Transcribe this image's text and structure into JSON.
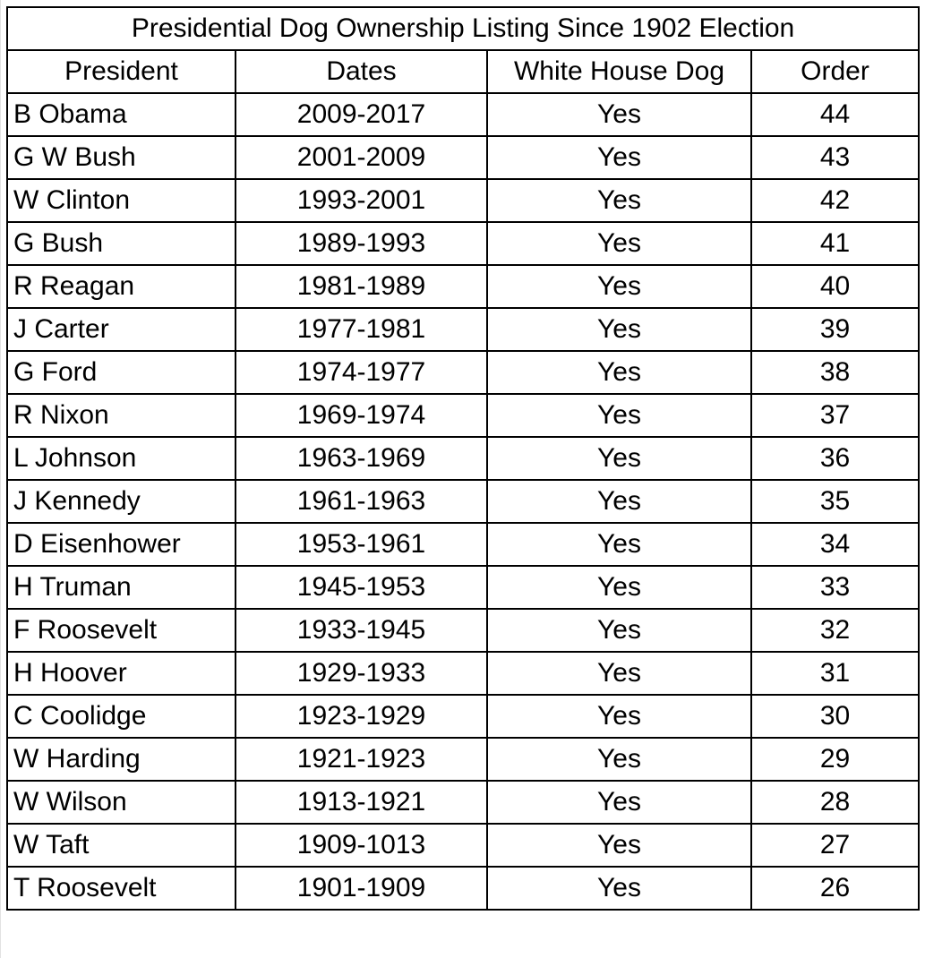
{
  "table": {
    "title": "Presidential Dog Ownership Listing  Since 1902 Election",
    "header": [
      "President",
      "Dates",
      "White House Dog",
      "Order"
    ],
    "rows": [
      [
        "B Obama",
        "2009-2017",
        "Yes",
        44
      ],
      [
        "G W Bush",
        "2001-2009",
        "Yes",
        43
      ],
      [
        "W Clinton",
        "1993-2001",
        "Yes",
        42
      ],
      [
        "G Bush",
        "1989-1993",
        "Yes",
        41
      ],
      [
        "R Reagan",
        "1981-1989",
        "Yes",
        40
      ],
      [
        "J Carter",
        "1977-1981",
        "Yes",
        39
      ],
      [
        "G Ford",
        "1974-1977",
        "Yes",
        38
      ],
      [
        "R Nixon",
        "1969-1974",
        "Yes",
        37
      ],
      [
        "L Johnson",
        "1963-1969",
        "Yes",
        36
      ],
      [
        "J Kennedy",
        "1961-1963",
        "Yes",
        35
      ],
      [
        "D Eisenhower",
        "1953-1961",
        "Yes",
        34
      ],
      [
        "H Truman",
        "1945-1953",
        "Yes",
        33
      ],
      [
        "F Roosevelt",
        "1933-1945",
        "Yes",
        32
      ],
      [
        "H Hoover",
        "1929-1933",
        "Yes",
        31
      ],
      [
        "C Coolidge",
        "1923-1929",
        "Yes",
        30
      ],
      [
        "W Harding",
        "1921-1923",
        "Yes",
        29
      ],
      [
        "W Wilson",
        "1913-1921",
        "Yes",
        28
      ],
      [
        "W Taft",
        "1909-1013",
        "Yes",
        27
      ],
      [
        "T Roosevelt",
        "1901-1909",
        "Yes",
        26
      ]
    ]
  }
}
